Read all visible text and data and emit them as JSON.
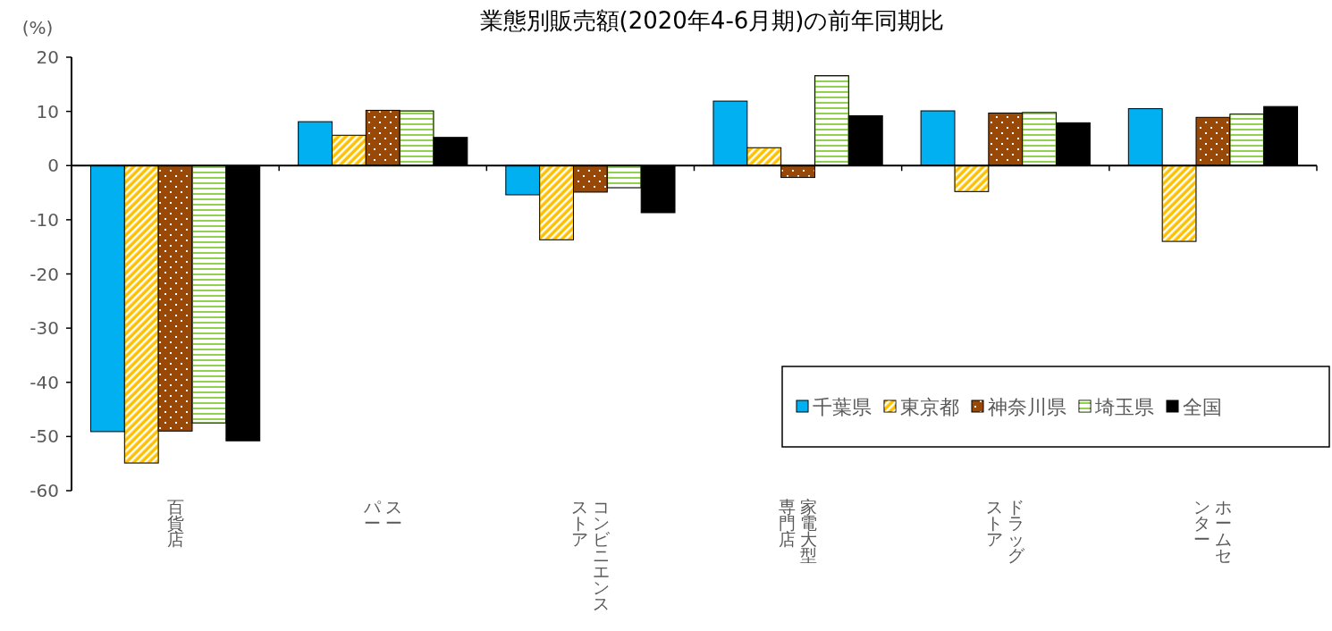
{
  "chart_data": {
    "type": "bar",
    "title": "業態別販売額(2020年4-6月期)の前年同期比",
    "ylabel": "(%)",
    "categories": [
      "百貨店",
      "スーパー",
      "コンビニエンスストア",
      "家電大型専門店",
      "ドラッグストア",
      "ホームセンター"
    ],
    "series": [
      {
        "name": "千葉県",
        "color": "#00b0f0",
        "values": [
          -49.1,
          8.1,
          -5.4,
          11.9,
          10.1,
          10.5
        ]
      },
      {
        "name": "東京都",
        "color": "#ffc000",
        "values": [
          -54.9,
          5.6,
          -13.7,
          3.3,
          -4.8,
          -14.0
        ]
      },
      {
        "name": "神奈川県",
        "color": "#984807",
        "values": [
          -49.0,
          10.2,
          -4.9,
          -2.2,
          9.7,
          8.9
        ]
      },
      {
        "name": "埼玉県",
        "color": "#92d050",
        "values": [
          -47.5,
          10.1,
          -4.1,
          16.6,
          9.8,
          9.5
        ]
      },
      {
        "name": "全国",
        "color": "#000000",
        "values": [
          -50.8,
          5.2,
          -8.7,
          9.2,
          7.9,
          10.9
        ]
      }
    ],
    "ylim": [
      -60,
      20
    ],
    "yticks": [
      -60,
      -50,
      -40,
      -30,
      -20,
      -10,
      0,
      10,
      20
    ],
    "legend": "bottom right"
  }
}
